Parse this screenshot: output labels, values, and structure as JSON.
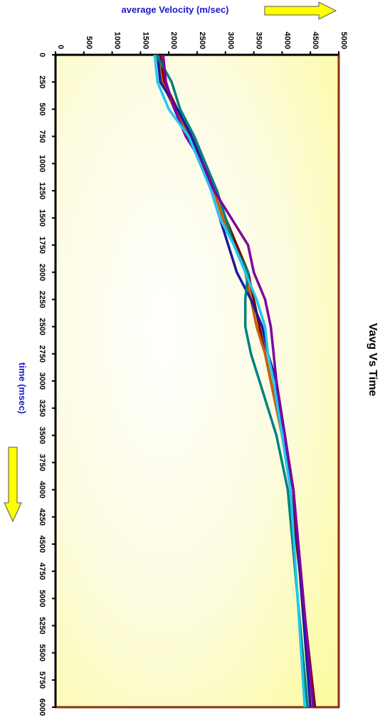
{
  "chart_data": {
    "type": "line",
    "title": "Vavg Vs Time",
    "xlabel": "time (msec)",
    "ylabel": "average Velocity (m/sec)",
    "x_ticks": [
      "0",
      "250",
      "500",
      "750",
      "1000",
      "1250",
      "1500",
      "1750",
      "2000",
      "2250",
      "2500",
      "2750",
      "3000",
      "3250",
      "3500",
      "3750",
      "4000",
      "4250",
      "4500",
      "4750",
      "5000",
      "5250",
      "5500",
      "5750",
      "6000"
    ],
    "y_ticks": [
      "0",
      "500",
      "1000",
      "1500",
      "2000",
      "2500",
      "3000",
      "3500",
      "4000",
      "4500",
      "5000"
    ],
    "xlim": [
      0,
      6000
    ],
    "ylim": [
      0,
      5000
    ],
    "orientation": "rotated 90 degrees clockwise (time runs downward, velocity runs rightward)",
    "plot_background": "yellow-to-white radial gradient",
    "x": [
      0,
      250,
      500,
      750,
      1000,
      1250,
      1500,
      1750,
      2000,
      2250,
      2500,
      2750,
      3000,
      3500,
      4000,
      6000
    ],
    "series": [
      {
        "color": "#7b0000",
        "values": [
          1850,
          1920,
          2150,
          2400,
          2600,
          2850,
          3000,
          3200,
          3400,
          3500,
          3600,
          3700,
          3800,
          4000,
          4150,
          4580
        ]
      },
      {
        "color": "#c86000",
        "values": [
          1800,
          1880,
          2100,
          2350,
          2550,
          2800,
          2950,
          3150,
          3350,
          3450,
          3550,
          3700,
          3800,
          4000,
          4200,
          4500
        ]
      },
      {
        "color": "#1a1a9e",
        "values": [
          1800,
          1850,
          2150,
          2400,
          2600,
          2750,
          2900,
          3050,
          3200,
          3450,
          3650,
          3750,
          3900,
          4000,
          4200,
          4500
        ]
      },
      {
        "color": "#008080",
        "values": [
          1780,
          2050,
          2200,
          2450,
          2650,
          2850,
          3000,
          3150,
          3400,
          3350,
          3350,
          3450,
          3600,
          3900,
          4100,
          4450
        ]
      },
      {
        "color": "#8000a0",
        "values": [
          1900,
          1950,
          2100,
          2300,
          2600,
          2800,
          3100,
          3400,
          3500,
          3700,
          3800,
          3850,
          3900,
          4050,
          4200,
          4550
        ]
      },
      {
        "color": "#20c8f0",
        "values": [
          1750,
          1800,
          2000,
          2350,
          2550,
          2750,
          2900,
          3150,
          3350,
          3550,
          3700,
          3750,
          3850,
          4000,
          4150,
          4400
        ]
      }
    ]
  }
}
